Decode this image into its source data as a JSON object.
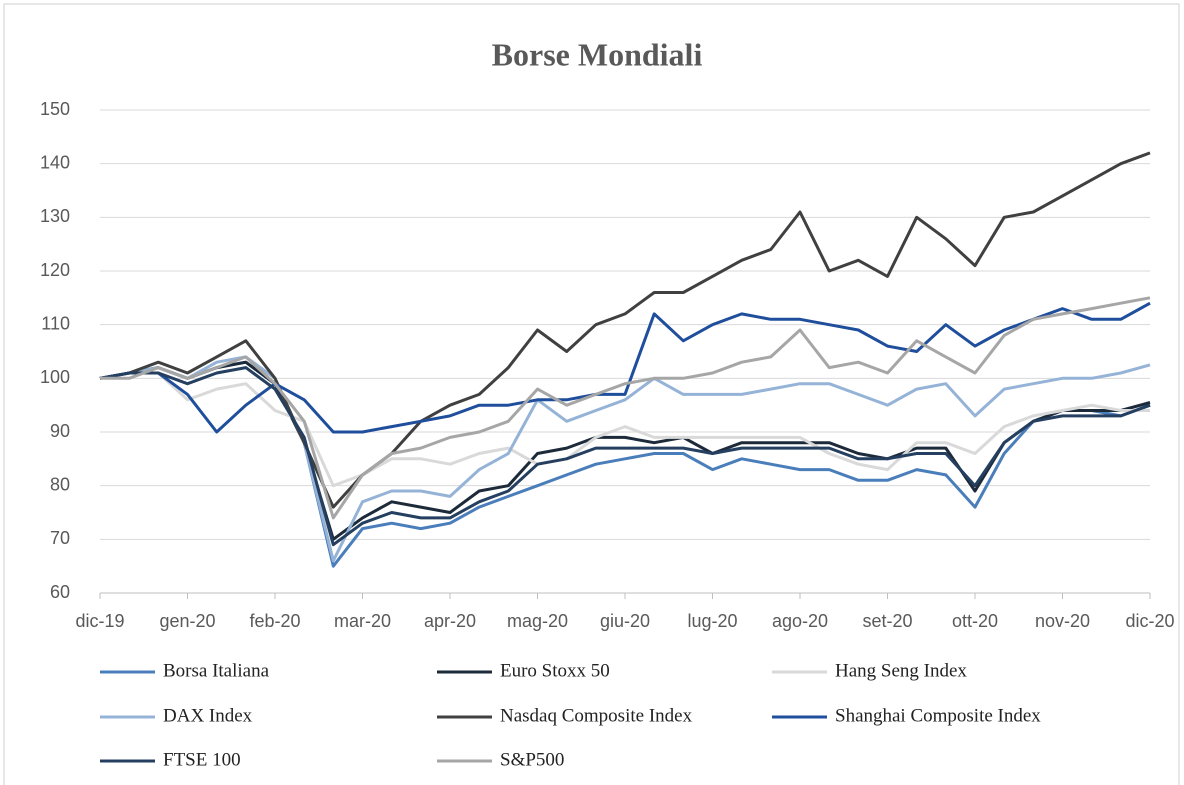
{
  "chart_data": {
    "type": "line",
    "title": "Borse Mondiali",
    "categories": [
      "dic-19",
      null,
      null,
      "gen-20",
      null,
      null,
      "feb-20",
      null,
      null,
      "mar-20",
      null,
      null,
      "apr-20",
      null,
      null,
      "mag-20",
      null,
      null,
      "giu-20",
      null,
      null,
      "lug-20",
      null,
      null,
      "ago-20",
      null,
      null,
      "set-20",
      null,
      null,
      "ott-20",
      null,
      null,
      "nov-20",
      null,
      null,
      "dic-20"
    ],
    "ylim": [
      60,
      150
    ],
    "yticks": [
      60,
      70,
      80,
      90,
      100,
      110,
      120,
      130,
      140,
      150
    ],
    "grid": true,
    "legend": "bottom",
    "series": [
      {
        "name": "Borsa Italiana",
        "color": "#4a7ebb",
        "values": [
          100,
          101,
          102,
          100,
          102,
          103,
          99,
          88,
          65,
          72,
          73,
          72,
          73,
          76,
          78,
          80,
          82,
          84,
          85,
          86,
          86,
          83,
          85,
          84,
          83,
          83,
          81,
          81,
          83,
          82,
          76,
          86,
          92,
          94,
          94,
          93,
          95
        ]
      },
      {
        "name": "Euro Stoxx 50",
        "color": "#1c2a3a",
        "values": [
          100,
          101,
          102,
          100,
          102,
          103,
          99,
          88,
          70,
          74,
          77,
          76,
          75,
          79,
          80,
          86,
          87,
          89,
          89,
          88,
          89,
          86,
          88,
          88,
          88,
          88,
          86,
          85,
          87,
          87,
          79,
          88,
          92,
          94,
          94,
          94,
          95.5
        ]
      },
      {
        "name": "Hang Seng Index",
        "color": "#d9d9d9",
        "values": [
          100,
          101,
          101,
          96,
          98,
          99,
          94,
          92,
          80,
          82,
          85,
          85,
          84,
          86,
          87,
          84,
          85,
          89,
          91,
          89,
          89,
          89,
          89,
          89,
          89,
          86,
          84,
          83,
          88,
          88,
          86,
          91,
          93,
          94,
          95,
          94,
          94
        ]
      },
      {
        "name": "DAX Index",
        "color": "#95b3d7",
        "values": [
          100,
          101,
          102,
          100,
          103,
          104,
          100,
          88,
          66,
          77,
          79,
          79,
          78,
          83,
          86,
          96,
          92,
          94,
          96,
          100,
          97,
          97,
          97,
          98,
          99,
          99,
          97,
          95,
          98,
          99,
          93,
          98,
          99,
          100,
          100,
          101,
          102.5
        ]
      },
      {
        "name": "Nasdaq Composite Index",
        "color": "#404040",
        "values": [
          100,
          101,
          103,
          101,
          104,
          107,
          100,
          88,
          76,
          82,
          86,
          92,
          95,
          97,
          102,
          109,
          105,
          110,
          112,
          116,
          116,
          119,
          122,
          124,
          131,
          120,
          122,
          119,
          130,
          126,
          121,
          130,
          131,
          134,
          137,
          140,
          142
        ]
      },
      {
        "name": "Shanghai Composite Index",
        "color": "#1f4e9c",
        "values": [
          100,
          101,
          101,
          97,
          90,
          95,
          99,
          96,
          90,
          90,
          91,
          92,
          93,
          95,
          95,
          96,
          96,
          97,
          97,
          112,
          107,
          110,
          112,
          111,
          111,
          110,
          109,
          106,
          105,
          110,
          106,
          109,
          111,
          113,
          111,
          111,
          114
        ]
      },
      {
        "name": "FTSE 100",
        "color": "#243f60",
        "values": [
          100,
          101,
          101,
          99,
          101,
          102,
          98,
          89,
          69,
          73,
          75,
          74,
          74,
          77,
          79,
          84,
          85,
          87,
          87,
          87,
          87,
          86,
          87,
          87,
          87,
          87,
          85,
          85,
          86,
          86,
          80,
          88,
          92,
          93,
          93,
          93,
          95
        ]
      },
      {
        "name": "S&P500",
        "color": "#a6a6a6",
        "values": [
          100,
          100,
          102,
          100,
          102,
          104,
          99,
          92,
          74,
          82,
          86,
          87,
          89,
          90,
          92,
          98,
          95,
          97,
          99,
          100,
          100,
          101,
          103,
          104,
          109,
          102,
          103,
          101,
          107,
          104,
          101,
          108,
          111,
          112,
          113,
          114,
          115
        ]
      }
    ]
  }
}
